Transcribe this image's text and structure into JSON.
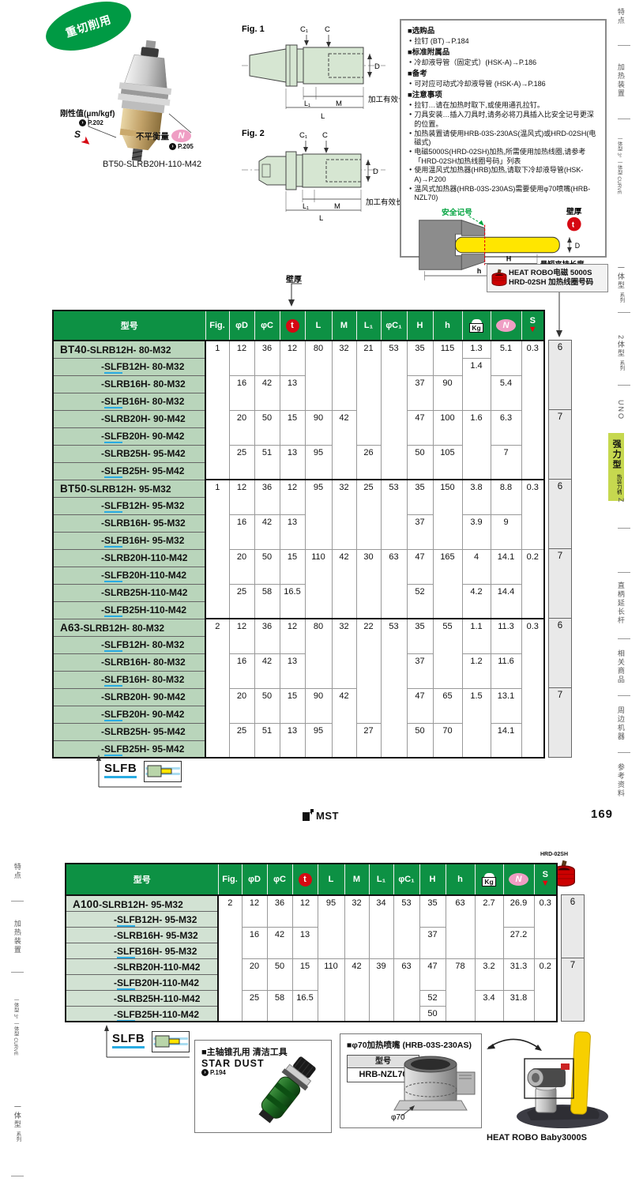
{
  "page": {
    "badge": "重切削用",
    "brand": "MST",
    "number": "169"
  },
  "photo": {
    "rigidity": "刚性值(μm/kgf)",
    "rigidity_ref": "P.202",
    "s": "S",
    "unbalance": "不平衡量",
    "n": "N",
    "unbalance_ref": "P.205",
    "caption": "BT50-SLRB20H-110-M42"
  },
  "figures": {
    "fig1": {
      "label": "Fig. 1",
      "c1": "C₁",
      "c": "C",
      "d": "D",
      "l1": "L₁",
      "m": "M",
      "l": "L",
      "eff": "加工有效长度"
    },
    "fig2": {
      "label": "Fig. 2",
      "c1": "C₁",
      "c": "C",
      "d": "D",
      "l1": "L₁",
      "m": "M",
      "l": "L",
      "eff": "加工有效长度"
    }
  },
  "infobox": {
    "sections": [
      {
        "title": "■选购品",
        "items": [
          "拉钉 (BT)→P.184"
        ]
      },
      {
        "title": "■标准附属品",
        "items": [
          "冷却液导管（固定式）(HSK-A)→P.186"
        ]
      },
      {
        "title": "■备考",
        "items": [
          "可对应可动式冷却液导管 (HSK-A)→P.186"
        ]
      },
      {
        "title": "■注意事项",
        "items": [
          "拉钉…请在加热时取下,或使用通孔拉钉。",
          "刀具安装…插入刀具时,请务必将刀具插入比安全记号更深的位置。",
          "加热装置请使用HRB-03S-230AS(温风式)或HRD-02SH(电磁式)",
          "电磁5000S(HRD-02SH)加热,所需使用加热线圈,请参考「HRD-02SH加热线圈号码」列表",
          "使用温风式加热器(HRB)加热,请取下冷却液导管(HSK-A)→P.200",
          "温风式加热器(HRB-03S-230AS)需要使用φ70喷嘴(HRB-NZL70)"
        ]
      }
    ],
    "diagram": {
      "safety": "安全记号",
      "wall": "壁厚",
      "t": "t",
      "d": "D",
      "H": "H",
      "h": "h",
      "dim_h": "最短夹持长度",
      "dim_hmax": "刀具最大插入长度"
    }
  },
  "heat_label": {
    "line1": "HEAT ROBO电磁 5000S",
    "line2": "HRD-02SH 加热线圈号码"
  },
  "wall_label": "壁厚",
  "hrd_small": "HRD-02SH",
  "slfb": "SLFB",
  "table": {
    "headers": [
      {
        "label": "型号",
        "kind": "model"
      },
      {
        "label": "Fig.",
        "kind": "plain"
      },
      {
        "label": "φD",
        "kind": "plain"
      },
      {
        "label": "φC",
        "kind": "plain"
      },
      {
        "label": "t",
        "kind": "t"
      },
      {
        "label": "L",
        "kind": "plain"
      },
      {
        "label": "M",
        "kind": "plain"
      },
      {
        "label": "L₁",
        "kind": "plain"
      },
      {
        "label": "φC₁",
        "kind": "plain"
      },
      {
        "label": "H",
        "kind": "plain"
      },
      {
        "label": "h",
        "kind": "plain"
      },
      {
        "label": "Kg",
        "kind": "kg"
      },
      {
        "label": "N",
        "kind": "n"
      },
      {
        "label": "S",
        "kind": "s"
      }
    ]
  },
  "table1": {
    "rows": [
      {
        "b": "BT40",
        "m": "-SLRB12H- 80-M32",
        "c": [
          "1",
          "12",
          "36",
          "12",
          "80",
          "32",
          "21",
          "53",
          "35",
          "115",
          "1.3",
          "5.1",
          "0.3"
        ],
        "k": "6"
      },
      {
        "u": 1,
        "m": "-SLFB12H- 80-M32",
        "c": [
          "",
          "",
          "",
          "",
          "",
          "",
          "",
          "",
          "",
          "",
          "1.4",
          "",
          ""
        ]
      },
      {
        "m": "-SLRB16H- 80-M32",
        "c": [
          "",
          "16",
          "42",
          "13",
          "",
          "",
          "",
          "",
          "37",
          "90",
          "",
          "5.4",
          ""
        ]
      },
      {
        "u": 1,
        "m": "-SLFB16H- 80-M32",
        "c": [
          "",
          "",
          "",
          "",
          "",
          "",
          "",
          "",
          "",
          "",
          "",
          "",
          ""
        ]
      },
      {
        "m": "-SLRB20H- 90-M42",
        "c": [
          "",
          "20",
          "50",
          "15",
          "90",
          "42",
          "",
          "",
          "47",
          "100",
          "1.6",
          "6.3",
          ""
        ],
        "k": "7"
      },
      {
        "u": 1,
        "m": "-SLFB20H- 90-M42",
        "c": [
          "",
          "",
          "",
          "",
          "",
          "",
          "",
          "",
          "",
          "",
          "",
          "",
          ""
        ]
      },
      {
        "m": "-SLRB25H- 95-M42",
        "c": [
          "",
          "25",
          "51",
          "13",
          "95",
          "",
          "26",
          "",
          "50",
          "105",
          "",
          "7",
          ""
        ]
      },
      {
        "u": 1,
        "m": "-SLFB25H- 95-M42",
        "c": [
          "",
          "",
          "",
          "",
          "",
          "",
          "",
          "",
          "",
          "",
          "",
          "",
          ""
        ]
      },
      {
        "b": "BT50",
        "m": "-SLRB12H- 95-M32",
        "c": [
          "1",
          "12",
          "36",
          "12",
          "95",
          "32",
          "25",
          "53",
          "35",
          "150",
          "3.8",
          "8.8",
          "0.3"
        ],
        "k": "6"
      },
      {
        "u": 1,
        "m": "-SLFB12H- 95-M32",
        "c": [
          "",
          "",
          "",
          "",
          "",
          "",
          "",
          "",
          "",
          "",
          "",
          "",
          ""
        ]
      },
      {
        "m": "-SLRB16H- 95-M32",
        "c": [
          "",
          "16",
          "42",
          "13",
          "",
          "",
          "",
          "",
          "37",
          "",
          "3.9",
          "9",
          ""
        ]
      },
      {
        "u": 1,
        "m": "-SLFB16H- 95-M32",
        "c": [
          "",
          "",
          "",
          "",
          "",
          "",
          "",
          "",
          "",
          "",
          "",
          "",
          ""
        ]
      },
      {
        "m": "-SLRB20H-110-M42",
        "c": [
          "",
          "20",
          "50",
          "15",
          "110",
          "42",
          "30",
          "63",
          "47",
          "165",
          "4",
          "14.1",
          "0.2"
        ],
        "k": "7"
      },
      {
        "u": 1,
        "m": "-SLFB20H-110-M42",
        "c": [
          "",
          "",
          "",
          "",
          "",
          "",
          "",
          "",
          "",
          "",
          "",
          "",
          ""
        ]
      },
      {
        "m": "-SLRB25H-110-M42",
        "c": [
          "",
          "25",
          "58",
          "16.5",
          "",
          "",
          "",
          "",
          "52",
          "",
          "4.2",
          "14.4",
          ""
        ]
      },
      {
        "u": 1,
        "m": "-SLFB25H-110-M42",
        "c": [
          "",
          "",
          "",
          "",
          "",
          "",
          "",
          "",
          "",
          "",
          "",
          "",
          ""
        ]
      },
      {
        "b": "A63",
        "m": "-SLRB12H- 80-M32",
        "c": [
          "2",
          "12",
          "36",
          "12",
          "80",
          "32",
          "22",
          "53",
          "35",
          "55",
          "1.1",
          "11.3",
          "0.3"
        ],
        "k": "6"
      },
      {
        "u": 1,
        "m": "-SLFB12H- 80-M32",
        "c": [
          "",
          "",
          "",
          "",
          "",
          "",
          "",
          "",
          "",
          "",
          "",
          "",
          ""
        ]
      },
      {
        "m": "-SLRB16H- 80-M32",
        "c": [
          "",
          "16",
          "42",
          "13",
          "",
          "",
          "",
          "",
          "37",
          "",
          "1.2",
          "11.6",
          ""
        ]
      },
      {
        "u": 1,
        "m": "-SLFB16H- 80-M32",
        "c": [
          "",
          "",
          "",
          "",
          "",
          "",
          "",
          "",
          "",
          "",
          "",
          "",
          ""
        ]
      },
      {
        "m": "-SLRB20H- 90-M42",
        "c": [
          "",
          "20",
          "50",
          "15",
          "90",
          "42",
          "",
          "",
          "47",
          "65",
          "1.5",
          "13.1",
          ""
        ],
        "k": "7"
      },
      {
        "u": 1,
        "m": "-SLFB20H- 90-M42",
        "c": [
          "",
          "",
          "",
          "",
          "",
          "",
          "",
          "",
          "",
          "",
          "",
          "",
          ""
        ]
      },
      {
        "m": "-SLRB25H- 95-M42",
        "c": [
          "",
          "25",
          "51",
          "13",
          "95",
          "",
          "27",
          "",
          "50",
          "70",
          "",
          "14.1",
          ""
        ]
      },
      {
        "u": 1,
        "m": "-SLFB25H- 95-M42",
        "c": [
          "",
          "",
          "",
          "",
          "",
          "",
          "",
          "",
          "",
          "",
          "",
          "",
          ""
        ]
      }
    ]
  },
  "table2": {
    "rows": [
      {
        "b": "A100",
        "m": "-SLRB12H- 95-M32",
        "c": [
          "2",
          "12",
          "36",
          "12",
          "95",
          "32",
          "34",
          "53",
          "35",
          "63",
          "2.7",
          "26.9",
          "0.3"
        ],
        "k": "6"
      },
      {
        "u": 1,
        "m": "-SLFB12H- 95-M32",
        "c": [
          "",
          "",
          "",
          "",
          "",
          "",
          "",
          "",
          "",
          "",
          "",
          "",
          ""
        ]
      },
      {
        "m": "-SLRB16H- 95-M32",
        "c": [
          "",
          "16",
          "42",
          "13",
          "",
          "",
          "",
          "",
          "37",
          "",
          "",
          "27.2",
          ""
        ]
      },
      {
        "u": 1,
        "m": "-SLFB16H- 95-M32",
        "c": [
          "",
          "",
          "",
          "",
          "",
          "",
          "",
          "",
          "",
          "",
          "",
          "",
          ""
        ]
      },
      {
        "m": "-SLRB20H-110-M42",
        "c": [
          "",
          "20",
          "50",
          "15",
          "110",
          "42",
          "39",
          "63",
          "47",
          "78",
          "3.2",
          "31.3",
          "0.2"
        ],
        "k": "7"
      },
      {
        "u": 1,
        "m": "-SLFB20H-110-M42",
        "c": [
          "",
          "",
          "",
          "",
          "",
          "",
          "",
          "",
          "",
          "",
          "",
          "",
          ""
        ]
      },
      {
        "m": "-SLRB25H-110-M42",
        "c": [
          "",
          "25",
          "58",
          "16.5",
          "",
          "",
          "",
          "",
          "52",
          "",
          "3.4",
          "31.8",
          ""
        ]
      },
      {
        "u": 1,
        "m": "-SLFB25H-110-M42",
        "c": [
          "",
          "",
          "",
          "",
          "",
          "",
          "",
          "",
          "50",
          "",
          "",
          "",
          ""
        ]
      }
    ]
  },
  "star_dust": {
    "title1": "■主轴锥孔用 清洁工具",
    "title2": "STAR DUST",
    "ref": "P.194"
  },
  "nozzle": {
    "title": "■φ70加热喷嘴 (HRB-03S-230AS)",
    "col": "型号",
    "model": "HRB-NZL70",
    "dia": "φ70"
  },
  "baby": "HEAT ROBO Baby3000S",
  "sidebar_right": [
    {
      "label": "特点"
    },
    {
      "label": "加热装置"
    },
    {
      "lines": [
        "一体型 3°",
        "一体型 CURVE"
      ]
    },
    {
      "label": "一体型",
      "small": "系列"
    },
    {
      "label": "2体型",
      "small": "系列"
    },
    {
      "label": "UNO"
    },
    {
      "label": "强力型",
      "small": "热装刀柄",
      "highlight": true
    },
    {
      "label": "Z"
    },
    {
      "label": "直柄延长杆"
    },
    {
      "label": "相关商品"
    },
    {
      "label": "周边机器"
    },
    {
      "label": "参考资料"
    }
  ],
  "sidebar_left": [
    {
      "label": "特点"
    },
    {
      "label": "加热装置"
    },
    {
      "lines": [
        "一体型 3°",
        "一体型 CURVE"
      ]
    },
    {
      "label": "一体型",
      "small": "系列"
    }
  ],
  "colors": {
    "header_green": "#0d9144",
    "row_green": "#b9d5bb",
    "row_green_light": "#d2e2d3",
    "red": "#d60812",
    "pink": "#ef9ec4",
    "cyan": "#29abe2",
    "highlight": "#c6d84f",
    "badge": "#009a44"
  }
}
